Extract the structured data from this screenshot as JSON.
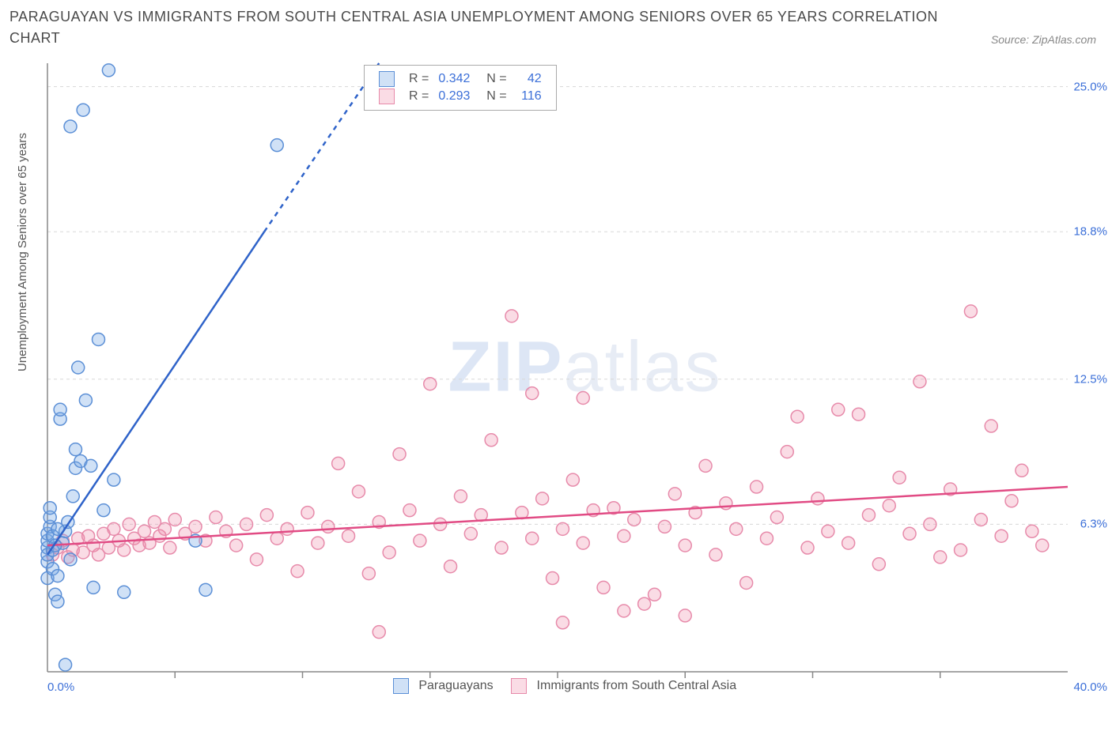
{
  "title": "PARAGUAYAN VS IMMIGRANTS FROM SOUTH CENTRAL ASIA UNEMPLOYMENT AMONG SENIORS OVER 65 YEARS CORRELATION CHART",
  "source": "Source: ZipAtlas.com",
  "yaxis_label": "Unemployment Among Seniors over 65 years",
  "watermark_a": "ZIP",
  "watermark_b": "atlas",
  "chart": {
    "type": "scatter",
    "background_color": "#ffffff",
    "gridline_color": "#d8d8d8",
    "axis_color": "#888888",
    "tick_color": "#888888",
    "tick_label_color": "#3b6fd8",
    "label_color": "#555555",
    "title_fontsize": 18,
    "label_fontsize": 15,
    "tick_fontsize": 15,
    "legend_fontsize": 16,
    "xlim": [
      0,
      40
    ],
    "ylim": [
      0,
      26
    ],
    "x_tick_min_label": "0.0%",
    "x_tick_max_label": "40.0%",
    "x_minor_tick_step": 5,
    "y_ticks": [
      {
        "v": 6.3,
        "label": "6.3%"
      },
      {
        "v": 12.5,
        "label": "12.5%"
      },
      {
        "v": 18.8,
        "label": "18.8%"
      },
      {
        "v": 25.0,
        "label": "25.0%"
      }
    ],
    "marker_radius": 8,
    "marker_stroke_width": 1.5,
    "trend_line_width": 2.5,
    "series": [
      {
        "name": "Paraguayans",
        "short": "paraguayans",
        "fill": "rgba(120,170,230,0.35)",
        "stroke": "#5b8fd6",
        "trend_color": "#2f63c9",
        "trend_dash_continue": "6 6",
        "R": "0.342",
        "N": "42",
        "trend": {
          "x1": 0,
          "y1": 5.0,
          "x2": 8.5,
          "y2": 18.8,
          "x3": 13.0,
          "y3": 26.0
        },
        "points": [
          [
            0.0,
            4.0
          ],
          [
            0.0,
            4.7
          ],
          [
            0.0,
            5.3
          ],
          [
            0.0,
            5.0
          ],
          [
            0.0,
            5.6
          ],
          [
            0.0,
            5.9
          ],
          [
            0.1,
            6.2
          ],
          [
            0.1,
            6.6
          ],
          [
            0.1,
            7.0
          ],
          [
            0.2,
            5.8
          ],
          [
            0.2,
            5.2
          ],
          [
            0.2,
            4.4
          ],
          [
            0.3,
            3.3
          ],
          [
            0.4,
            3.0
          ],
          [
            0.4,
            4.1
          ],
          [
            0.5,
            10.8
          ],
          [
            0.5,
            11.2
          ],
          [
            0.6,
            5.5
          ],
          [
            0.7,
            6.0
          ],
          [
            0.8,
            6.4
          ],
          [
            0.9,
            4.8
          ],
          [
            1.0,
            7.5
          ],
          [
            1.1,
            8.7
          ],
          [
            1.1,
            9.5
          ],
          [
            1.2,
            13.0
          ],
          [
            1.3,
            9.0
          ],
          [
            1.4,
            24.0
          ],
          [
            1.5,
            11.6
          ],
          [
            1.7,
            8.8
          ],
          [
            1.8,
            3.6
          ],
          [
            2.0,
            14.2
          ],
          [
            2.2,
            6.9
          ],
          [
            2.4,
            25.7
          ],
          [
            2.6,
            8.2
          ],
          [
            3.0,
            3.4
          ],
          [
            0.7,
            0.3
          ],
          [
            0.9,
            23.3
          ],
          [
            5.8,
            5.6
          ],
          [
            6.2,
            3.5
          ],
          [
            9.0,
            22.5
          ],
          [
            0.3,
            5.4
          ],
          [
            0.4,
            6.1
          ]
        ]
      },
      {
        "name": "Immigrants from South Central Asia",
        "short": "sca",
        "fill": "rgba(240,140,170,0.30)",
        "stroke": "#e78aaa",
        "trend_color": "#e14b84",
        "R": "0.293",
        "N": "116",
        "trend": {
          "x1": 0,
          "y1": 5.4,
          "x2": 40,
          "y2": 7.9
        },
        "points": [
          [
            0.2,
            5.0
          ],
          [
            0.4,
            5.3
          ],
          [
            0.6,
            5.6
          ],
          [
            0.8,
            4.9
          ],
          [
            1.0,
            5.2
          ],
          [
            1.2,
            5.7
          ],
          [
            1.4,
            5.1
          ],
          [
            1.6,
            5.8
          ],
          [
            1.8,
            5.4
          ],
          [
            2.0,
            5.0
          ],
          [
            2.2,
            5.9
          ],
          [
            2.4,
            5.3
          ],
          [
            2.6,
            6.1
          ],
          [
            2.8,
            5.6
          ],
          [
            3.0,
            5.2
          ],
          [
            3.2,
            6.3
          ],
          [
            3.4,
            5.7
          ],
          [
            3.6,
            5.4
          ],
          [
            3.8,
            6.0
          ],
          [
            4.0,
            5.5
          ],
          [
            4.2,
            6.4
          ],
          [
            4.4,
            5.8
          ],
          [
            4.6,
            6.1
          ],
          [
            4.8,
            5.3
          ],
          [
            5.0,
            6.5
          ],
          [
            5.4,
            5.9
          ],
          [
            5.8,
            6.2
          ],
          [
            6.2,
            5.6
          ],
          [
            6.6,
            6.6
          ],
          [
            7.0,
            6.0
          ],
          [
            7.4,
            5.4
          ],
          [
            7.8,
            6.3
          ],
          [
            8.2,
            4.8
          ],
          [
            8.6,
            6.7
          ],
          [
            9.0,
            5.7
          ],
          [
            9.4,
            6.1
          ],
          [
            9.8,
            4.3
          ],
          [
            10.2,
            6.8
          ],
          [
            10.6,
            5.5
          ],
          [
            11.0,
            6.2
          ],
          [
            11.4,
            8.9
          ],
          [
            11.8,
            5.8
          ],
          [
            12.2,
            7.7
          ],
          [
            12.6,
            4.2
          ],
          [
            13.0,
            6.4
          ],
          [
            13.0,
            1.7
          ],
          [
            13.4,
            5.1
          ],
          [
            13.8,
            9.3
          ],
          [
            14.2,
            6.9
          ],
          [
            14.6,
            5.6
          ],
          [
            15.0,
            12.3
          ],
          [
            15.4,
            6.3
          ],
          [
            15.8,
            4.5
          ],
          [
            16.2,
            7.5
          ],
          [
            16.6,
            5.9
          ],
          [
            17.0,
            6.7
          ],
          [
            17.4,
            9.9
          ],
          [
            17.8,
            5.3
          ],
          [
            18.2,
            15.2
          ],
          [
            18.6,
            6.8
          ],
          [
            19.0,
            5.7
          ],
          [
            19.0,
            11.9
          ],
          [
            19.4,
            7.4
          ],
          [
            19.8,
            4.0
          ],
          [
            20.2,
            6.1
          ],
          [
            20.2,
            2.1
          ],
          [
            20.6,
            8.2
          ],
          [
            21.0,
            5.5
          ],
          [
            21.0,
            11.7
          ],
          [
            21.4,
            6.9
          ],
          [
            21.8,
            3.6
          ],
          [
            22.2,
            7.0
          ],
          [
            22.6,
            5.8
          ],
          [
            22.6,
            2.6
          ],
          [
            23.0,
            6.5
          ],
          [
            23.4,
            2.9
          ],
          [
            23.8,
            3.3
          ],
          [
            24.2,
            6.2
          ],
          [
            24.6,
            7.6
          ],
          [
            25.0,
            5.4
          ],
          [
            25.0,
            2.4
          ],
          [
            25.4,
            6.8
          ],
          [
            25.8,
            8.8
          ],
          [
            26.2,
            5.0
          ],
          [
            26.6,
            7.2
          ],
          [
            27.0,
            6.1
          ],
          [
            27.4,
            3.8
          ],
          [
            27.8,
            7.9
          ],
          [
            28.2,
            5.7
          ],
          [
            28.6,
            6.6
          ],
          [
            29.0,
            9.4
          ],
          [
            29.4,
            10.9
          ],
          [
            29.8,
            5.3
          ],
          [
            30.2,
            7.4
          ],
          [
            30.6,
            6.0
          ],
          [
            31.0,
            11.2
          ],
          [
            31.4,
            5.5
          ],
          [
            31.8,
            11.0
          ],
          [
            32.2,
            6.7
          ],
          [
            32.6,
            4.6
          ],
          [
            33.0,
            7.1
          ],
          [
            33.4,
            8.3
          ],
          [
            33.8,
            5.9
          ],
          [
            34.2,
            12.4
          ],
          [
            34.6,
            6.3
          ],
          [
            35.0,
            4.9
          ],
          [
            35.4,
            7.8
          ],
          [
            35.8,
            5.2
          ],
          [
            36.2,
            15.4
          ],
          [
            36.6,
            6.5
          ],
          [
            37.0,
            10.5
          ],
          [
            37.4,
            5.8
          ],
          [
            37.8,
            7.3
          ],
          [
            38.2,
            8.6
          ],
          [
            38.6,
            6.0
          ],
          [
            39.0,
            5.4
          ]
        ]
      }
    ]
  }
}
